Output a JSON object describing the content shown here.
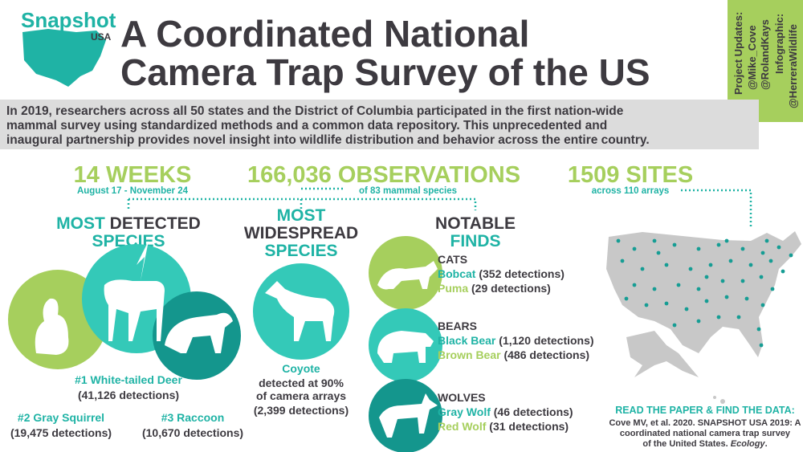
{
  "logo": {
    "name": "Snapshot",
    "sub": "USA"
  },
  "title": [
    "A Coordinated National",
    "Camera Trap Survey of the US"
  ],
  "sidebar": {
    "updates_label": "Project Updates:",
    "handles": [
      "@Mike_Cove",
      "@RolandKays"
    ],
    "infographic_label": "Infographic:",
    "infographic_handle": "@HerreraWildlife"
  },
  "intro": [
    "In 2019, researchers across all 50 states and the District of Columbia participated in the first nation-wide",
    "mammal survey using standardized methods and a common data repository. This unprecedented and",
    "inaugural partnership provides novel insight into wildlife distribution and behavior across the entire country."
  ],
  "stats": [
    {
      "value": "14 WEEKS",
      "detail": "August 17 - November 24"
    },
    {
      "value": "166,036 OBSERVATIONS",
      "detail": "of 83 mammal species"
    },
    {
      "value": "1509 SITES",
      "detail": "across 110 arrays"
    }
  ],
  "most_detected": {
    "heading": [
      "MOST",
      "DETECTED",
      "SPECIES"
    ],
    "species": [
      {
        "name": "#1 White-tailed Deer",
        "detections": "(41,126 detections)"
      },
      {
        "name": "#2 Gray Squirrel",
        "detections": "(19,475 detections)"
      },
      {
        "name": "#3 Raccoon",
        "detections": "(10,670 detections)"
      }
    ]
  },
  "most_widespread": {
    "heading": [
      "MOST",
      "WIDESPREAD",
      "SPECIES"
    ],
    "species": "Coyote",
    "details": [
      "detected at 90%",
      "of camera arrays",
      "(2,399 detections)"
    ]
  },
  "notable_finds": {
    "heading": [
      "NOTABLE",
      "FINDS"
    ],
    "groups": [
      {
        "group": "CATS",
        "items": [
          {
            "name": "Bobcat",
            "detections": "(352 detections)"
          },
          {
            "name": "Puma",
            "detections": "(29 detections)"
          }
        ]
      },
      {
        "group": "BEARS",
        "items": [
          {
            "name": "Black Bear",
            "detections": "(1,120 detections)"
          },
          {
            "name": "Brown Bear",
            "detections": "(486 detections)"
          }
        ]
      },
      {
        "group": "WOLVES",
        "items": [
          {
            "name": "Gray Wolf",
            "detections": "(46 detections)"
          },
          {
            "name": "Red Wolf",
            "detections": "(31 detections)"
          }
        ]
      }
    ]
  },
  "read_paper": {
    "heading": "READ THE PAPER & FIND THE DATA:",
    "citation": [
      "Cove MV, et al. 2020. SNAPSHOT USA 2019: A",
      "coordinated national camera trap survey",
      "of the United States."
    ],
    "journal": "Ecology",
    "end": "."
  }
}
